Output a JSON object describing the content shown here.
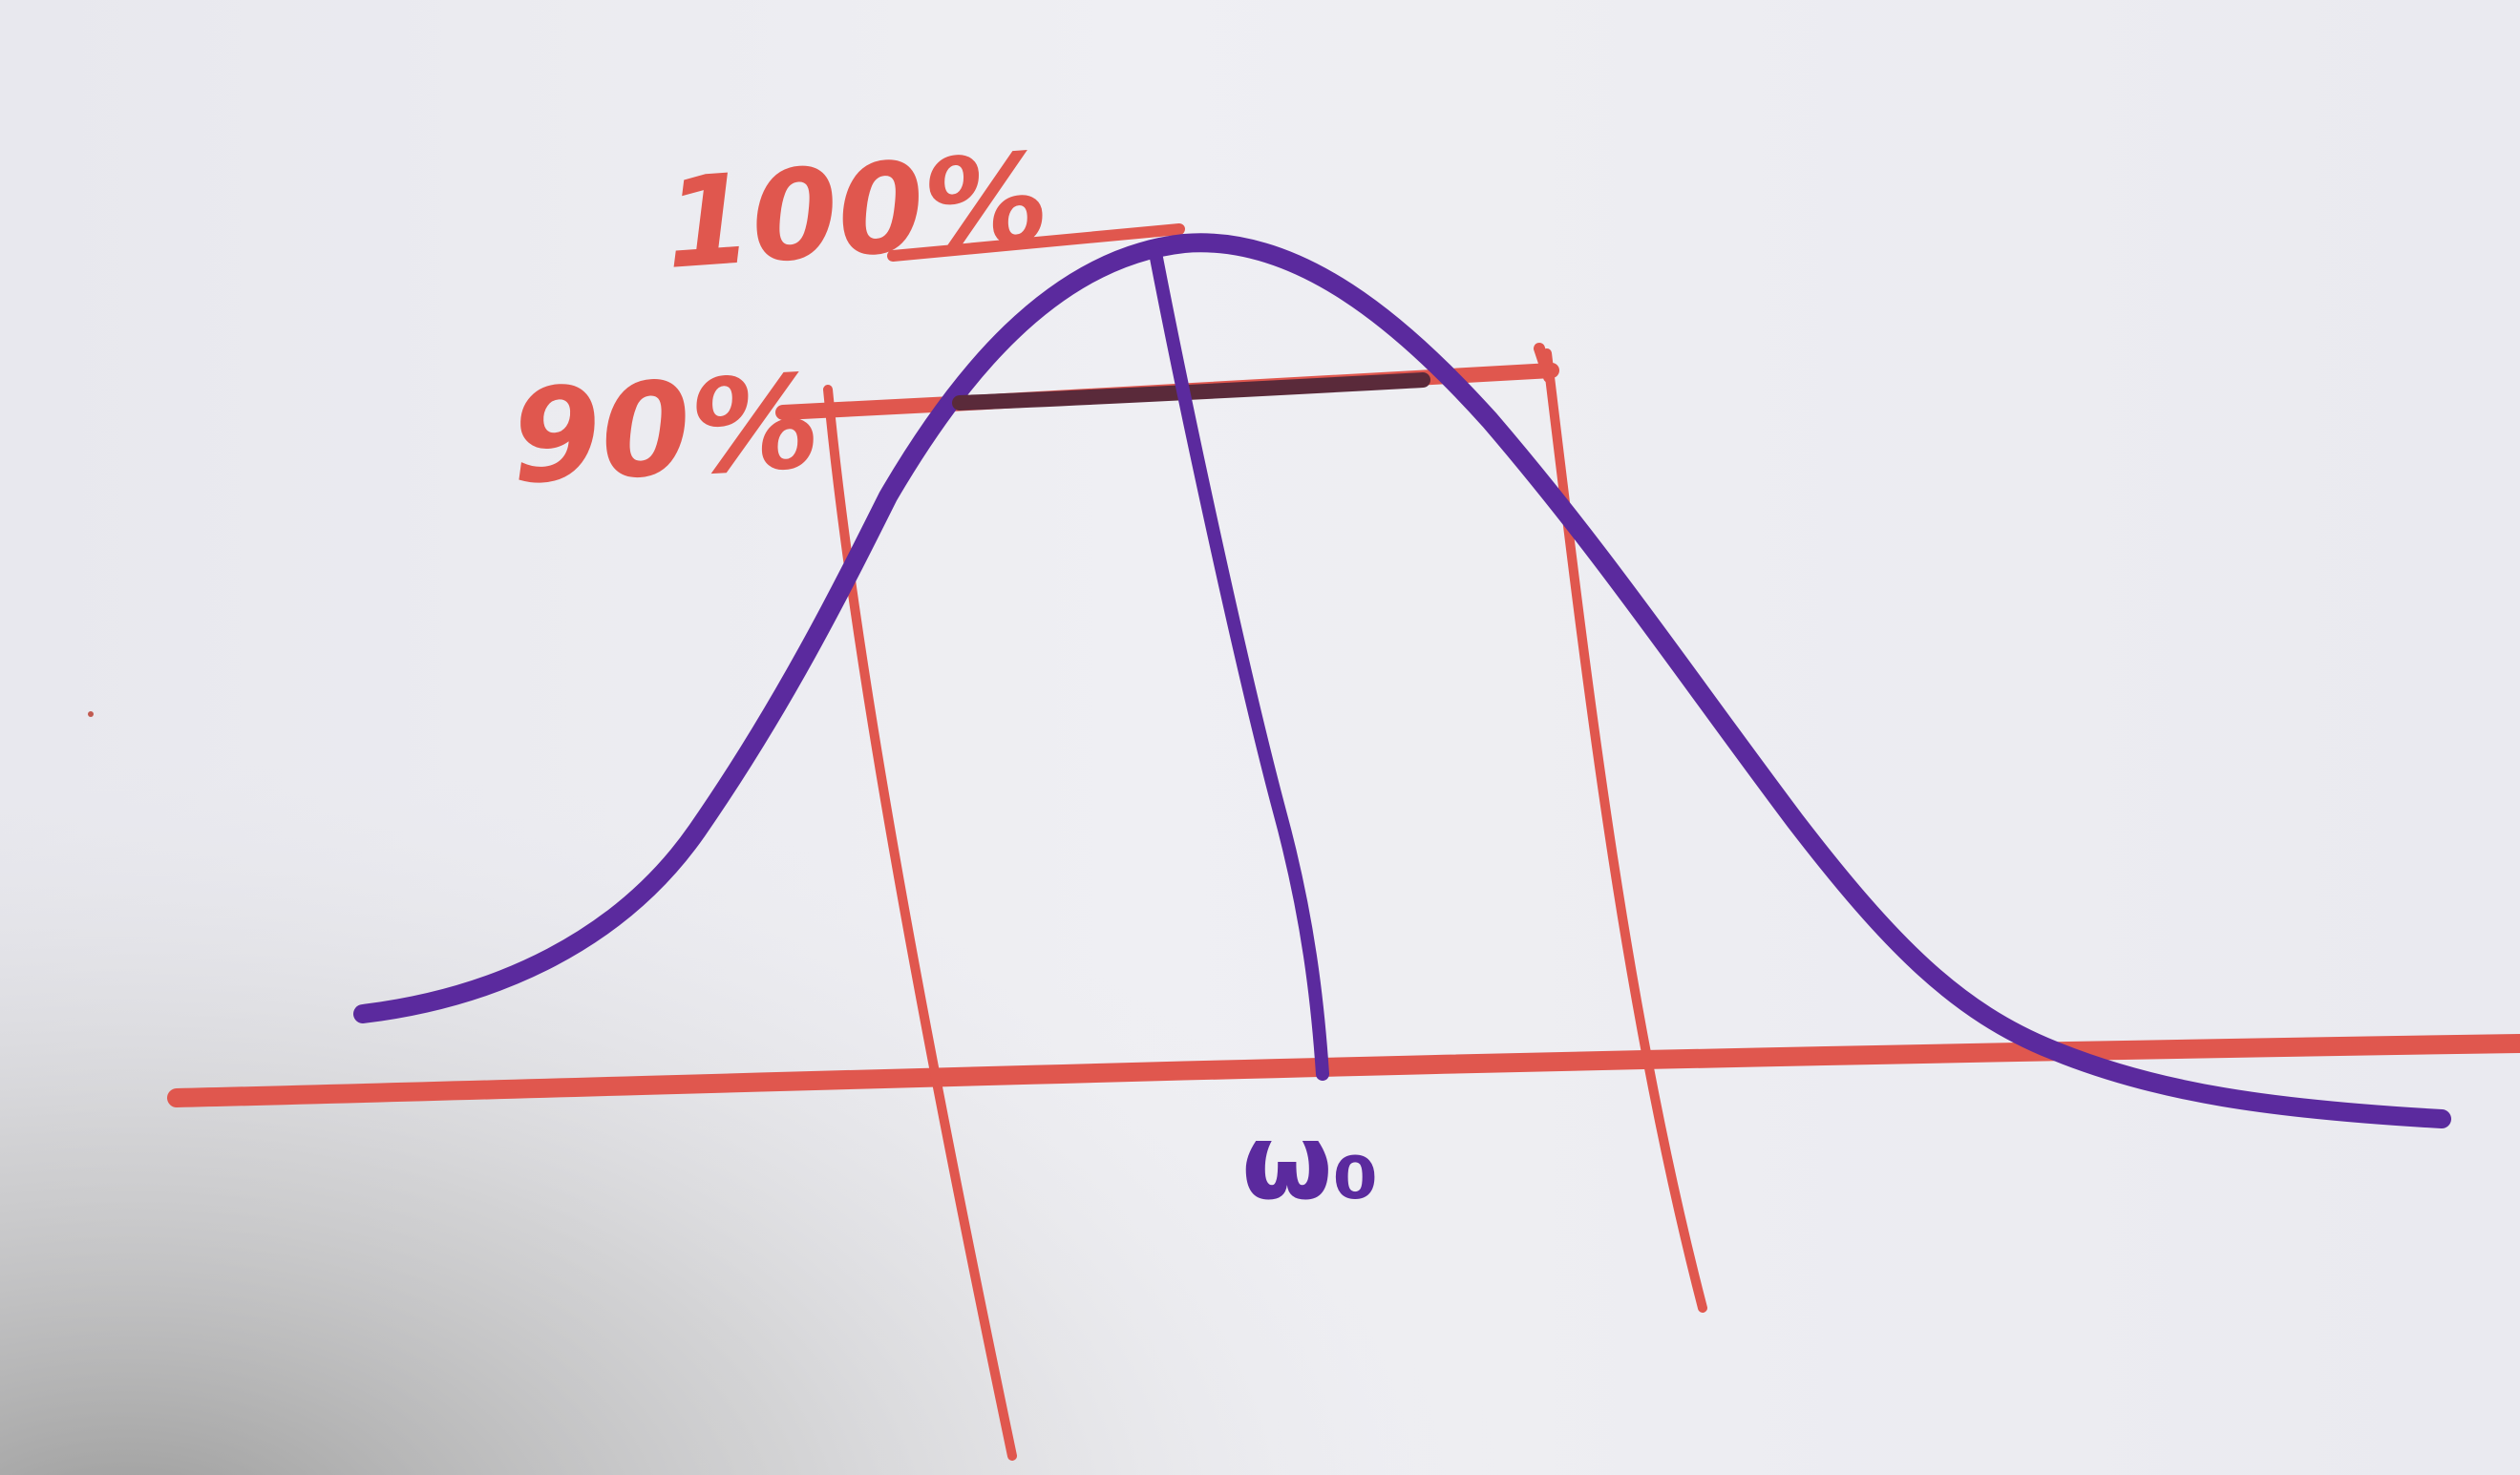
{
  "diagram": {
    "labels": {
      "peak": "100%",
      "ninety": "90%",
      "center": "ω₀"
    },
    "colors": {
      "red_ink": "#e0574e",
      "purple_ink": "#5b2a9e",
      "dark_overlap": "#5a2a3a",
      "paper": "#ececf1"
    }
  }
}
